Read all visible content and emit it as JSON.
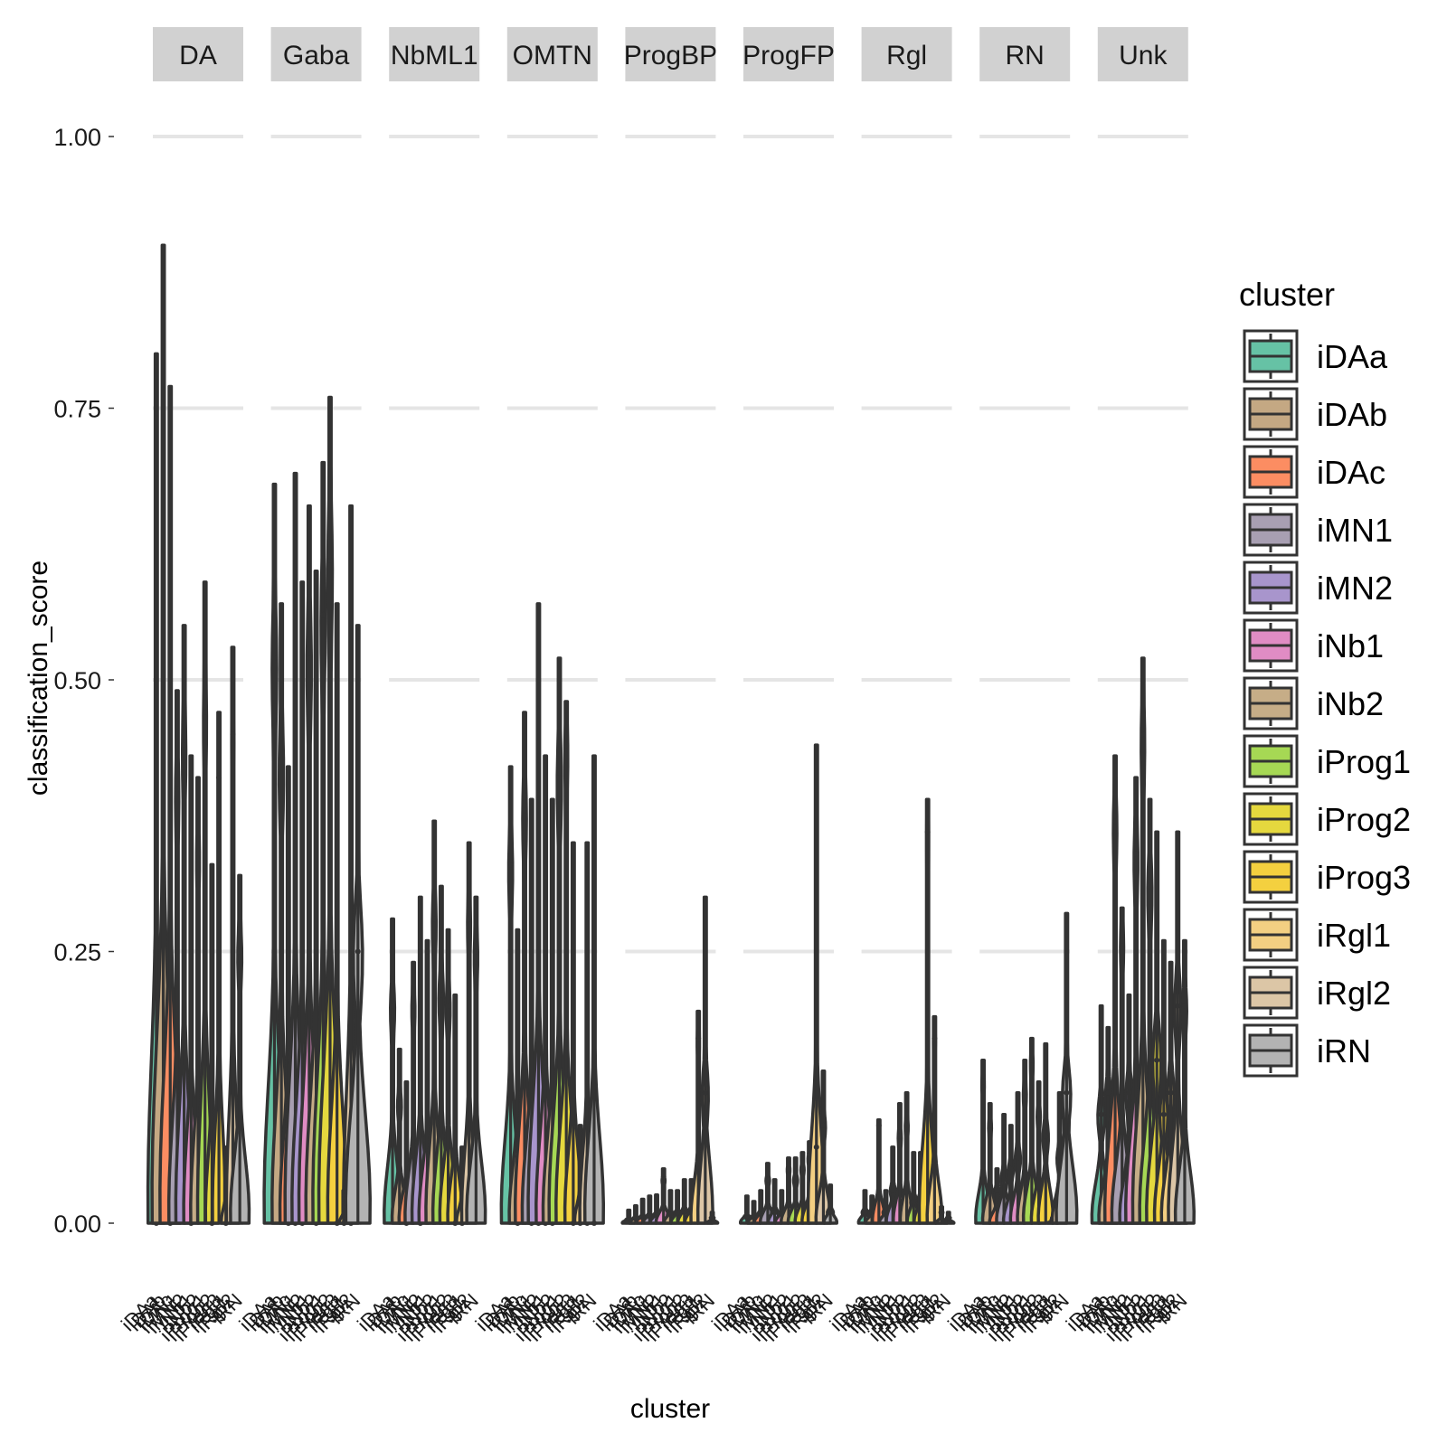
{
  "chart_data": {
    "type": "violin",
    "xlabel": "cluster",
    "ylabel": "classification_score",
    "ylim": [
      0,
      1
    ],
    "y_ticks": [
      "0.00",
      "0.25",
      "0.50",
      "0.75",
      "1.00"
    ],
    "grid": "horizontal major",
    "legend": {
      "title": "cluster",
      "position": "right",
      "items": [
        {
          "label": "iDAa",
          "color": "#66c2a5"
        },
        {
          "label": "iDAb",
          "color": "#c4a883"
        },
        {
          "label": "iDAc",
          "color": "#fc8d62"
        },
        {
          "label": "iMN1",
          "color": "#a89fb2"
        },
        {
          "label": "iMN2",
          "color": "#a895cc"
        },
        {
          "label": "iNb1",
          "color": "#e08cc4"
        },
        {
          "label": "iNb2",
          "color": "#c6ad87"
        },
        {
          "label": "iProg1",
          "color": "#a6d854"
        },
        {
          "label": "iProg2",
          "color": "#e5d83e"
        },
        {
          "label": "iProg3",
          "color": "#f4d03f"
        },
        {
          "label": "iRgl1",
          "color": "#f3cf82"
        },
        {
          "label": "iRgl2",
          "color": "#dcc6a6"
        },
        {
          "label": "iRN",
          "color": "#b3b3b3"
        }
      ]
    },
    "categories": [
      "iDAa",
      "iDAb",
      "iDAc",
      "iMN1",
      "iMN2",
      "iNb1",
      "iNb2",
      "iProg1",
      "iProg2",
      "iProg3",
      "iRgl1",
      "iRgl2",
      "iRN"
    ],
    "facets": [
      {
        "name": "DA",
        "max": [
          0.8,
          0.9,
          0.77,
          0.49,
          0.55,
          0.43,
          0.41,
          0.59,
          0.33,
          0.47,
          0.07,
          0.53,
          0.32
        ],
        "median": [
          0.0,
          0.08,
          0.0,
          0.4,
          0.44,
          0.0,
          0.34,
          0.47,
          0.0,
          0.41,
          0.0,
          0.45,
          0.25
        ],
        "spread": [
          0.6,
          0.9,
          0.8,
          0.6,
          0.6,
          0.5,
          0.5,
          0.5,
          0.4,
          0.4,
          0.2,
          0.4,
          0.7
        ]
      },
      {
        "name": "Gaba",
        "max": [
          0.68,
          0.57,
          0.42,
          0.69,
          0.59,
          0.66,
          0.6,
          0.7,
          0.76,
          0.57,
          0.03,
          0.66,
          0.55
        ],
        "median": [
          0.52,
          0.42,
          0.0,
          0.0,
          0.0,
          0.52,
          0.0,
          0.56,
          0.61,
          0.0,
          0.0,
          0.0,
          0.25
        ],
        "spread": [
          0.8,
          0.7,
          0.6,
          0.8,
          0.8,
          0.8,
          0.8,
          0.8,
          0.9,
          0.7,
          0.2,
          0.5,
          1.0
        ]
      },
      {
        "name": "NbML1",
        "max": [
          0.28,
          0.16,
          0.13,
          0.24,
          0.3,
          0.26,
          0.37,
          0.31,
          0.27,
          0.21,
          0.07,
          0.35,
          0.3
        ],
        "median": [
          0.2,
          0.11,
          0.0,
          0.2,
          0.0,
          0.25,
          0.28,
          0.21,
          0.2,
          0.0,
          0.0,
          0.28,
          0.25
        ],
        "spread": [
          0.6,
          0.5,
          0.5,
          0.6,
          0.6,
          0.6,
          0.6,
          0.6,
          0.6,
          0.5,
          0.3,
          0.5,
          0.7
        ]
      },
      {
        "name": "OMTN",
        "max": [
          0.42,
          0.27,
          0.47,
          0.39,
          0.57,
          0.43,
          0.39,
          0.52,
          0.48,
          0.35,
          0.09,
          0.35,
          0.43
        ],
        "median": [
          0.33,
          0.0,
          0.38,
          0.0,
          0.0,
          0.0,
          0.0,
          0.41,
          0.44,
          0.0,
          0.0,
          0.0,
          0.0
        ],
        "spread": [
          0.7,
          0.6,
          0.7,
          0.7,
          0.8,
          0.7,
          0.7,
          0.8,
          0.8,
          0.6,
          0.3,
          0.5,
          0.7
        ]
      },
      {
        "name": "ProgBP",
        "max": [
          0.012,
          0.016,
          0.022,
          0.025,
          0.026,
          0.05,
          0.03,
          0.03,
          0.04,
          0.04,
          0.195,
          0.3,
          0.01
        ],
        "median": [
          0.003,
          0.004,
          0.005,
          0.006,
          0.007,
          0.04,
          0.008,
          0.009,
          0.01,
          0.01,
          0.17,
          0.12,
          0.005
        ],
        "spread": [
          0.4,
          0.4,
          0.4,
          0.4,
          0.4,
          0.5,
          0.4,
          0.4,
          0.4,
          0.4,
          0.5,
          0.5,
          0.3
        ]
      },
      {
        "name": "ProgFP",
        "max": [
          0.025,
          0.02,
          0.03,
          0.055,
          0.04,
          0.03,
          0.06,
          0.06,
          0.065,
          0.075,
          0.44,
          0.14,
          0.035
        ],
        "median": [
          0.005,
          0.005,
          0.008,
          0.04,
          0.01,
          0.008,
          0.05,
          0.04,
          0.05,
          0.06,
          0.07,
          0.09,
          0.01
        ],
        "spread": [
          0.4,
          0.4,
          0.4,
          0.5,
          0.4,
          0.4,
          0.5,
          0.5,
          0.5,
          0.5,
          0.6,
          0.5,
          0.4
        ]
      },
      {
        "name": "Rgl",
        "max": [
          0.03,
          0.025,
          0.095,
          0.03,
          0.07,
          0.11,
          0.12,
          0.065,
          0.065,
          0.39,
          0.19,
          0.015,
          0.01
        ],
        "median": [
          0.01,
          0.01,
          0.09,
          0.01,
          0.03,
          0.08,
          0.09,
          0.02,
          0.02,
          0.36,
          0.17,
          0.01,
          0.005
        ],
        "spread": [
          0.4,
          0.4,
          0.4,
          0.4,
          0.4,
          0.4,
          0.4,
          0.4,
          0.4,
          0.6,
          0.5,
          0.3,
          0.3
        ]
      },
      {
        "name": "RN",
        "max": [
          0.15,
          0.11,
          0.05,
          0.1,
          0.09,
          0.12,
          0.15,
          0.17,
          0.13,
          0.165,
          0.005,
          0.12,
          0.285
        ],
        "median": [
          0.13,
          0.09,
          0.03,
          0.04,
          0.05,
          0.06,
          0.12,
          0.15,
          0.1,
          0.08,
          0.003,
          0.06,
          0.12
        ],
        "spread": [
          0.5,
          0.5,
          0.5,
          0.5,
          0.5,
          0.5,
          0.5,
          0.6,
          0.5,
          0.5,
          0.3,
          0.5,
          0.8
        ]
      },
      {
        "name": "Unk",
        "max": [
          0.2,
          0.18,
          0.43,
          0.29,
          0.21,
          0.41,
          0.52,
          0.39,
          0.36,
          0.26,
          0.24,
          0.36,
          0.26
        ],
        "median": [
          0.1,
          0.12,
          0.37,
          0.26,
          0.12,
          0.34,
          0.45,
          0.31,
          0.15,
          0.1,
          0.12,
          0.2,
          0.2
        ],
        "spread": [
          0.7,
          0.7,
          0.8,
          0.8,
          0.7,
          0.8,
          0.8,
          0.8,
          0.8,
          0.7,
          0.7,
          0.7,
          0.7
        ]
      }
    ]
  }
}
